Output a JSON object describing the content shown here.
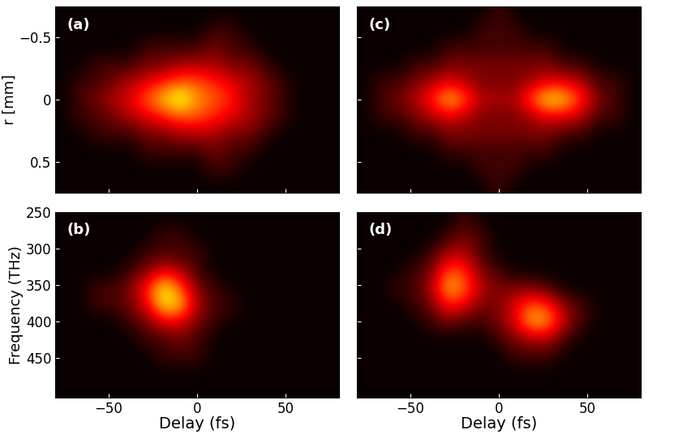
{
  "chart_data": [
    {
      "type": "heatmap",
      "title": "(a)",
      "ylabel": "r [mm]",
      "xlim": [
        -80,
        80
      ],
      "ylim": [
        0.75,
        -0.75
      ],
      "xticks": [
        {
          "value": -50,
          "label": "−50"
        },
        0,
        50
      ],
      "yticks": [
        {
          "value": -0.5,
          "label": "−0.5"
        },
        0,
        0.5
      ],
      "tick_labels": "y",
      "color_range": [
        0,
        12
      ],
      "cells": [
        [
          0,
          0,
          0,
          0,
          0,
          0,
          0,
          0,
          0,
          0,
          0,
          0,
          0,
          0,
          0,
          0,
          0
        ],
        [
          0,
          0,
          0,
          0,
          0,
          0,
          0,
          0,
          0,
          1,
          1,
          0,
          0,
          0,
          0,
          0,
          0
        ],
        [
          0,
          0,
          0,
          0,
          0,
          1,
          1,
          1,
          1,
          2,
          1,
          1,
          0,
          0,
          0,
          0,
          0
        ],
        [
          0,
          0,
          1,
          1,
          1,
          2,
          2,
          3,
          3,
          3,
          2,
          2,
          1,
          0,
          0,
          0,
          0
        ],
        [
          0,
          1,
          1,
          2,
          3,
          4,
          5,
          6,
          6,
          5,
          4,
          3,
          2,
          1,
          0,
          0,
          0
        ],
        [
          0,
          1,
          2,
          3,
          4,
          6,
          8,
          10,
          7,
          6,
          5,
          3,
          2,
          1,
          0,
          0,
          0
        ],
        [
          0,
          1,
          1,
          2,
          3,
          4,
          5,
          6,
          6,
          5,
          4,
          3,
          2,
          1,
          0,
          0,
          0
        ],
        [
          0,
          0,
          1,
          1,
          1,
          2,
          2,
          3,
          3,
          3,
          2,
          2,
          1,
          0,
          0,
          0,
          0
        ],
        [
          0,
          0,
          0,
          0,
          0,
          1,
          1,
          1,
          1,
          2,
          1,
          1,
          0,
          0,
          0,
          0,
          0
        ],
        [
          0,
          0,
          0,
          0,
          0,
          0,
          0,
          0,
          0,
          1,
          1,
          0,
          0,
          0,
          0,
          0,
          0
        ],
        [
          0,
          0,
          0,
          0,
          0,
          0,
          0,
          0,
          0,
          0,
          0,
          0,
          0,
          0,
          0,
          0,
          0
        ]
      ]
    },
    {
      "type": "heatmap",
      "title": "(c)",
      "xlim": [
        -80,
        80
      ],
      "ylim": [
        0.75,
        -0.75
      ],
      "xticks": [
        {
          "value": -50,
          "label": "−50"
        },
        0,
        50
      ],
      "yticks": [
        {
          "value": -0.5,
          "label": "−0.5"
        },
        0,
        0.5
      ],
      "tick_labels": false,
      "color_range": [
        0,
        12
      ],
      "cells": [
        [
          0,
          0,
          0,
          0,
          0,
          0,
          0,
          0,
          1,
          0,
          0,
          0,
          0,
          0,
          0,
          0,
          0
        ],
        [
          0,
          0,
          0,
          0,
          0,
          0,
          0,
          1,
          1,
          1,
          0,
          0,
          0,
          0,
          0,
          0,
          0
        ],
        [
          0,
          0,
          0,
          0,
          0,
          1,
          1,
          1,
          1,
          1,
          1,
          1,
          0,
          0,
          0,
          0,
          0
        ],
        [
          0,
          0,
          0,
          1,
          1,
          2,
          2,
          2,
          2,
          2,
          2,
          2,
          1,
          1,
          0,
          0,
          0
        ],
        [
          0,
          1,
          1,
          2,
          3,
          4,
          3,
          2,
          2,
          2,
          3,
          4,
          4,
          3,
          1,
          1,
          0
        ],
        [
          0,
          1,
          2,
          3,
          5,
          8,
          6,
          3,
          3,
          3,
          6,
          9,
          8,
          5,
          2,
          1,
          0
        ],
        [
          0,
          1,
          1,
          2,
          3,
          4,
          3,
          2,
          2,
          2,
          3,
          4,
          4,
          3,
          1,
          1,
          0
        ],
        [
          0,
          0,
          0,
          1,
          1,
          2,
          2,
          2,
          2,
          2,
          2,
          2,
          1,
          1,
          0,
          0,
          0
        ],
        [
          0,
          0,
          0,
          0,
          0,
          1,
          1,
          1,
          1,
          1,
          1,
          1,
          0,
          0,
          0,
          0,
          0
        ],
        [
          0,
          0,
          0,
          0,
          0,
          0,
          0,
          1,
          1,
          1,
          0,
          0,
          0,
          0,
          0,
          0,
          0
        ],
        [
          0,
          0,
          0,
          0,
          0,
          0,
          0,
          0,
          1,
          0,
          0,
          0,
          0,
          0,
          0,
          0,
          0
        ]
      ]
    },
    {
      "type": "heatmap",
      "title": "(b)",
      "xlabel": "Delay (fs)",
      "ylabel": "Frequency (THz)",
      "xlim": [
        -80,
        80
      ],
      "ylim": [
        505,
        250
      ],
      "xticks": [
        {
          "value": -50,
          "label": "−50"
        },
        0,
        50
      ],
      "yticks": [
        250,
        300,
        350,
        400,
        450
      ],
      "color_range": [
        0,
        12
      ],
      "cells": [
        [
          0,
          0,
          0,
          0,
          0,
          0,
          0,
          0,
          0,
          0,
          0,
          0,
          0,
          0,
          0,
          0,
          0
        ],
        [
          0,
          0,
          0,
          0,
          0,
          0,
          1,
          1,
          0,
          0,
          0,
          0,
          0,
          0,
          0,
          0,
          0
        ],
        [
          0,
          0,
          0,
          0,
          0,
          1,
          1,
          1,
          1,
          0,
          0,
          0,
          0,
          0,
          0,
          0,
          0
        ],
        [
          0,
          0,
          0,
          0,
          1,
          2,
          4,
          3,
          1,
          0,
          0,
          0,
          0,
          0,
          0,
          0,
          0
        ],
        [
          0,
          0,
          1,
          1,
          2,
          5,
          9,
          6,
          2,
          1,
          0,
          0,
          0,
          0,
          0,
          0,
          0
        ],
        [
          0,
          0,
          1,
          1,
          2,
          4,
          9,
          8,
          3,
          1,
          1,
          0,
          0,
          0,
          0,
          0,
          0
        ],
        [
          0,
          0,
          0,
          0,
          1,
          2,
          4,
          4,
          2,
          1,
          0,
          0,
          0,
          0,
          0,
          0,
          0
        ],
        [
          0,
          0,
          0,
          0,
          0,
          1,
          1,
          2,
          1,
          0,
          0,
          0,
          0,
          0,
          0,
          0,
          0
        ],
        [
          0,
          0,
          0,
          0,
          0,
          0,
          1,
          1,
          1,
          0,
          0,
          0,
          0,
          0,
          0,
          0,
          0
        ],
        [
          0,
          0,
          0,
          0,
          0,
          0,
          0,
          0,
          0,
          0,
          0,
          0,
          0,
          0,
          0,
          0,
          0
        ],
        [
          0,
          0,
          0,
          0,
          0,
          0,
          0,
          0,
          0,
          0,
          0,
          0,
          0,
          0,
          0,
          0,
          0
        ]
      ]
    },
    {
      "type": "heatmap",
      "title": "(d)",
      "xlabel": "Delay (fs)",
      "xlim": [
        -80,
        80
      ],
      "ylim": [
        505,
        250
      ],
      "xticks": [
        {
          "value": -50,
          "label": "−50"
        },
        0,
        50
      ],
      "yticks": [
        250,
        300,
        350,
        400,
        450
      ],
      "tick_labels": "x",
      "color_range": [
        0,
        12
      ],
      "cells": [
        [
          0,
          0,
          0,
          0,
          0,
          0,
          1,
          0,
          0,
          0,
          0,
          0,
          0,
          0,
          0,
          0,
          0
        ],
        [
          0,
          0,
          0,
          0,
          0,
          1,
          2,
          1,
          0,
          0,
          0,
          0,
          0,
          0,
          0,
          0,
          0
        ],
        [
          0,
          0,
          0,
          0,
          1,
          3,
          3,
          1,
          0,
          0,
          0,
          0,
          0,
          0,
          0,
          0,
          0
        ],
        [
          0,
          0,
          0,
          1,
          2,
          6,
          5,
          2,
          1,
          0,
          0,
          0,
          0,
          0,
          0,
          0,
          0
        ],
        [
          0,
          0,
          1,
          1,
          3,
          8,
          6,
          3,
          2,
          2,
          2,
          1,
          0,
          0,
          0,
          0,
          0
        ],
        [
          0,
          0,
          0,
          1,
          2,
          5,
          4,
          2,
          2,
          4,
          6,
          5,
          2,
          1,
          0,
          0,
          0
        ],
        [
          0,
          0,
          0,
          0,
          1,
          2,
          1,
          1,
          2,
          4,
          8,
          7,
          3,
          1,
          0,
          0,
          0
        ],
        [
          0,
          0,
          0,
          0,
          0,
          0,
          0,
          0,
          1,
          2,
          3,
          3,
          1,
          0,
          0,
          0,
          0
        ],
        [
          0,
          0,
          0,
          0,
          0,
          0,
          0,
          0,
          0,
          1,
          1,
          1,
          0,
          0,
          0,
          0,
          0
        ],
        [
          0,
          0,
          0,
          0,
          0,
          0,
          0,
          0,
          0,
          0,
          0,
          0,
          0,
          0,
          0,
          0,
          0
        ],
        [
          0,
          0,
          0,
          0,
          0,
          0,
          0,
          0,
          0,
          0,
          0,
          0,
          0,
          0,
          0,
          0,
          0
        ]
      ]
    }
  ]
}
